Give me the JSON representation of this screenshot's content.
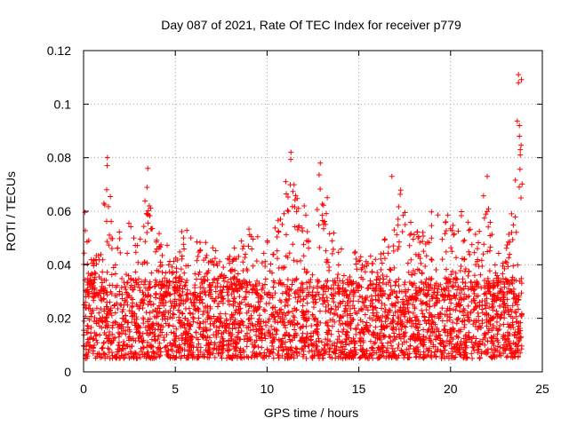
{
  "chart_data": {
    "type": "scatter",
    "title": "Day 087 of 2021, Rate Of TEC Index for receiver p779",
    "xlabel": "GPS time / hours",
    "ylabel": "ROTI / TECUs",
    "xlim": [
      0,
      25
    ],
    "ylim": [
      0,
      0.12
    ],
    "x_ticks": [
      0,
      5,
      10,
      15,
      20,
      25
    ],
    "x_tick_labels": [
      "0",
      "5",
      "10",
      "15",
      "20",
      "25"
    ],
    "y_ticks": [
      0,
      0.02,
      0.04,
      0.06,
      0.08,
      0.1,
      0.12
    ],
    "y_tick_labels": [
      "0",
      "0.02",
      "0.04",
      "0.06",
      "0.08",
      "0.1",
      "0.12"
    ],
    "grid": true,
    "marker": "plus",
    "color": "#ff0000",
    "series": [
      {
        "name": "ROTI",
        "x_range": [
          0,
          23.9
        ],
        "typical_range": [
          0.005,
          0.035
        ],
        "spike_envelope": [
          [
            0.0,
            0.063
          ],
          [
            0.5,
            0.045
          ],
          [
            1.0,
            0.058
          ],
          [
            1.3,
            0.08
          ],
          [
            1.6,
            0.055
          ],
          [
            2.0,
            0.057
          ],
          [
            2.4,
            0.064
          ],
          [
            3.0,
            0.052
          ],
          [
            3.5,
            0.076
          ],
          [
            4.0,
            0.058
          ],
          [
            4.5,
            0.048
          ],
          [
            5.0,
            0.046
          ],
          [
            5.6,
            0.06
          ],
          [
            6.2,
            0.05
          ],
          [
            7.0,
            0.054
          ],
          [
            7.8,
            0.048
          ],
          [
            8.5,
            0.05
          ],
          [
            9.2,
            0.062
          ],
          [
            9.5,
            0.052
          ],
          [
            10.0,
            0.057
          ],
          [
            10.6,
            0.063
          ],
          [
            11.3,
            0.082
          ],
          [
            11.8,
            0.065
          ],
          [
            12.5,
            0.06
          ],
          [
            12.9,
            0.078
          ],
          [
            13.5,
            0.058
          ],
          [
            14.0,
            0.048
          ],
          [
            14.5,
            0.052
          ],
          [
            15.0,
            0.048
          ],
          [
            15.5,
            0.05
          ],
          [
            16.0,
            0.045
          ],
          [
            16.5,
            0.058
          ],
          [
            16.8,
            0.073
          ],
          [
            17.3,
            0.068
          ],
          [
            17.9,
            0.061
          ],
          [
            18.5,
            0.058
          ],
          [
            19.2,
            0.066
          ],
          [
            19.8,
            0.058
          ],
          [
            20.5,
            0.068
          ],
          [
            20.9,
            0.065
          ],
          [
            21.3,
            0.052
          ],
          [
            22.0,
            0.073
          ],
          [
            22.5,
            0.044
          ],
          [
            23.0,
            0.05
          ],
          [
            23.3,
            0.063
          ],
          [
            23.7,
            0.111
          ]
        ],
        "labeled_peaks": [
          {
            "x": 1.3,
            "y": 0.08
          },
          {
            "x": 3.5,
            "y": 0.076
          },
          {
            "x": 11.3,
            "y": 0.082
          },
          {
            "x": 12.9,
            "y": 0.078
          },
          {
            "x": 16.8,
            "y": 0.073
          },
          {
            "x": 22.0,
            "y": 0.073
          },
          {
            "x": 23.7,
            "y": 0.111
          },
          {
            "x": 23.7,
            "y": 0.108
          },
          {
            "x": 23.75,
            "y": 0.092
          },
          {
            "x": 23.75,
            "y": 0.088
          },
          {
            "x": 23.8,
            "y": 0.083
          },
          {
            "x": 23.8,
            "y": 0.081
          }
        ]
      }
    ]
  }
}
